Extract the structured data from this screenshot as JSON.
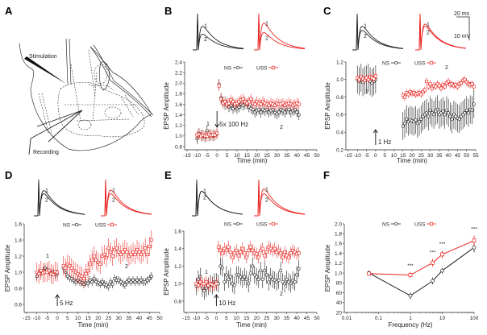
{
  "panel_labels": [
    "A",
    "B",
    "C",
    "D",
    "E",
    "F"
  ],
  "schematic": {
    "stimulation_label": "Stimulation",
    "recording_label": "Recording"
  },
  "colors": {
    "NS": "#222222",
    "USS": "#e8231f"
  },
  "scale_bar": {
    "time": "20 ms",
    "voltage": "10 mV"
  },
  "chart_data": [
    {
      "panel": "B",
      "type": "scatter",
      "xlabel": "Time (min)",
      "ylabel": "EPSP Amplitude",
      "xlim": [
        -15,
        50
      ],
      "ylim": [
        0.8,
        2.4
      ],
      "xticks": [
        "-15",
        "-10",
        "-5",
        "0",
        "5",
        "10",
        "15",
        "20",
        "25",
        "30",
        "35",
        "40",
        "45",
        "50"
      ],
      "yticks": [
        "0.8",
        "1.0",
        "1.2",
        "1.4",
        "1.6",
        "1.8",
        "2.0",
        "2.2",
        "2.4"
      ],
      "legend": [
        "NS",
        "USS"
      ],
      "legend_position": "top-center",
      "stimulus": {
        "label": "5x 100 Hz",
        "time": 0,
        "direction": "down"
      },
      "trace_labels": [
        "1",
        "2"
      ],
      "timepoint_labels": [
        "1",
        "2"
      ],
      "series": [
        {
          "name": "NS",
          "sem": 0.1,
          "baseline": {
            "t0": -10,
            "values": [
              0.95,
              1.05,
              1.02,
              1.0,
              0.98,
              1.1,
              1.0,
              1.02,
              1.0,
              1.02,
              1.04
            ]
          },
          "post": {
            "t0": 1,
            "values": [
              1.98,
              1.72,
              1.65,
              1.6,
              1.62,
              1.55,
              1.58,
              1.52,
              1.55,
              1.52,
              1.55,
              1.6,
              1.58,
              1.6,
              1.6,
              1.55,
              1.52,
              1.5,
              1.45,
              1.48,
              1.5,
              1.45,
              1.5,
              1.48,
              1.5,
              1.45,
              1.48,
              1.5,
              1.44,
              1.42,
              1.45,
              1.5,
              1.48,
              1.45,
              1.5,
              1.5,
              1.45,
              1.48,
              1.5,
              1.45,
              1.4
            ]
          }
        },
        {
          "name": "USS",
          "sem": 0.1,
          "baseline": {
            "t0": -10,
            "values": [
              1.02,
              1.03,
              1.0,
              1.02,
              1.0,
              1.0,
              1.03,
              1.01,
              1.02,
              1.02,
              1.05
            ]
          },
          "post": {
            "t0": 1,
            "values": [
              1.95,
              1.7,
              1.62,
              1.65,
              1.6,
              1.62,
              1.68,
              1.65,
              1.6,
              1.62,
              1.65,
              1.68,
              1.7,
              1.65,
              1.62,
              1.65,
              1.7,
              1.62,
              1.6,
              1.65,
              1.62,
              1.6,
              1.65,
              1.62,
              1.6,
              1.58,
              1.62,
              1.6,
              1.58,
              1.62,
              1.6,
              1.6,
              1.62,
              1.58,
              1.6,
              1.62,
              1.6,
              1.58,
              1.6,
              1.62,
              1.6
            ]
          }
        }
      ]
    },
    {
      "panel": "C",
      "type": "scatter",
      "xlabel": "Time (min)",
      "ylabel": "EPSP Amplitude",
      "xlim": [
        -15,
        55
      ],
      "ylim": [
        0.2,
        1.2
      ],
      "xticks": [
        "-15",
        "-10",
        "-5",
        "0",
        "5",
        "10",
        "15",
        "20",
        "25",
        "30",
        "35",
        "40",
        "45",
        "50",
        "55"
      ],
      "yticks": [
        "0.2",
        "0.4",
        "0.6",
        "0.8",
        "1.0",
        "1.2"
      ],
      "legend": [
        "NS",
        "USS"
      ],
      "legend_position": "top-center",
      "stimulus": {
        "label": "1 Hz",
        "time": 0,
        "direction": "up"
      },
      "trace_labels": [
        "1",
        "2"
      ],
      "timepoint_labels": [
        "1",
        "2"
      ],
      "series": [
        {
          "name": "NS",
          "sem": 0.16,
          "baseline": {
            "t0": -10,
            "values": [
              1.0,
              0.98,
              1.02,
              0.97,
              0.99,
              1.0,
              1.02,
              0.98,
              0.96,
              0.98,
              1.0
            ]
          },
          "post": {
            "t0": 15,
            "values": [
              0.47,
              0.5,
              0.55,
              0.52,
              0.54,
              0.53,
              0.52,
              0.54,
              0.5,
              0.52,
              0.55,
              0.58,
              0.6,
              0.62,
              0.58,
              0.65,
              0.62,
              0.6,
              0.64,
              0.66,
              0.6,
              0.62,
              0.64,
              0.6,
              0.65,
              0.62,
              0.58,
              0.55,
              0.6,
              0.58,
              0.56,
              0.55,
              0.58,
              0.6,
              0.62,
              0.65,
              0.62,
              0.66,
              0.65,
              0.72
            ]
          }
        },
        {
          "name": "USS",
          "sem": 0.04,
          "baseline": {
            "t0": -10,
            "values": [
              1.02,
              1.0,
              1.03,
              1.01,
              0.99,
              1.02,
              1.0,
              1.03,
              1.02,
              1.01,
              1.04
            ]
          },
          "post": {
            "t0": 15,
            "values": [
              0.82,
              0.8,
              0.85,
              0.83,
              0.86,
              0.84,
              0.85,
              0.83,
              0.84,
              0.85,
              0.83,
              0.86,
              0.88,
              0.98,
              0.92,
              0.95,
              0.9,
              0.93,
              0.92,
              0.95,
              0.93,
              0.9,
              0.94,
              0.92,
              0.96,
              0.98,
              0.94,
              0.95,
              0.93,
              0.94,
              0.92,
              0.95,
              0.96,
              0.99,
              1.0,
              0.97,
              0.95,
              0.94,
              0.95,
              0.92
            ]
          }
        }
      ]
    },
    {
      "panel": "D",
      "type": "scatter",
      "xlabel": "Time (min)",
      "ylabel": "EPSP Amplitude",
      "xlim": [
        -15,
        50
      ],
      "ylim": [
        0.6,
        1.6
      ],
      "xticks": [
        "-15",
        "-10",
        "-5",
        "0",
        "5",
        "10",
        "15",
        "20",
        "25",
        "30",
        "35",
        "40",
        "45",
        "50"
      ],
      "yticks": [
        "0.6",
        "0.8",
        "1.0",
        "1.2",
        "1.4",
        "1.6"
      ],
      "legend": [
        "NS",
        "USS"
      ],
      "legend_position": "top-center",
      "stimulus": {
        "label": "5 Hz",
        "time": 0,
        "direction": "up"
      },
      "trace_labels": [
        "1",
        "2"
      ],
      "timepoint_labels": [
        "1",
        "2"
      ],
      "series": [
        {
          "name": "NS",
          "sem": 0.05,
          "baseline": {
            "t0": -10,
            "values": [
              0.95,
              1.0,
              0.98,
              1.02,
              1.05,
              1.03,
              1.0,
              0.98,
              1.0,
              0.97,
              0.98
            ]
          },
          "post": {
            "t0": 3,
            "values": [
              1.05,
              1.0,
              0.95,
              0.93,
              0.92,
              0.9,
              0.88,
              0.9,
              0.88,
              0.87,
              0.85,
              0.87,
              0.86,
              0.9,
              0.88,
              0.92,
              0.88,
              0.87,
              0.85,
              0.88,
              0.85,
              0.84,
              0.82,
              0.88,
              0.85,
              0.92,
              0.9,
              0.9,
              0.88,
              0.86,
              0.84,
              0.88,
              0.9,
              0.88,
              0.9,
              0.88,
              0.9,
              0.88,
              0.9,
              0.88,
              0.88,
              0.9,
              0.92,
              0.95
            ]
          }
        },
        {
          "name": "USS",
          "sem": 0.12,
          "baseline": {
            "t0": -10,
            "values": [
              1.0,
              0.98,
              1.02,
              0.99,
              1.0,
              1.0,
              1.02,
              0.98,
              0.97,
              1.01,
              1.0
            ]
          },
          "post": {
            "t0": 3,
            "values": [
              1.08,
              1.05,
              1.1,
              1.08,
              1.05,
              1.02,
              1.0,
              0.98,
              0.96,
              0.95,
              0.92,
              0.98,
              1.02,
              1.1,
              1.15,
              1.2,
              1.15,
              1.12,
              1.1,
              1.2,
              1.22,
              1.18,
              1.3,
              1.25,
              1.2,
              1.28,
              1.3,
              1.25,
              1.22,
              1.25,
              1.28,
              1.25,
              1.2,
              1.22,
              1.25,
              1.22,
              1.28,
              1.25,
              1.22,
              1.25,
              1.3,
              1.22,
              1.32,
              1.4
            ]
          }
        }
      ]
    },
    {
      "panel": "E",
      "type": "scatter",
      "xlabel": "Time (min)",
      "ylabel": "EPSP Amplitude",
      "xlim": [
        -15,
        50
      ],
      "ylim": [
        0.8,
        1.6
      ],
      "xticks": [
        "-15",
        "-10",
        "-5",
        "0",
        "5",
        "10",
        "15",
        "20",
        "25",
        "30",
        "35",
        "40",
        "45",
        "50"
      ],
      "yticks": [
        "0.8",
        "1.0",
        "1.2",
        "1.4",
        "1.6"
      ],
      "legend": [
        "NS",
        "USS"
      ],
      "legend_position": "top-center",
      "stimulus": {
        "label": "10 Hz",
        "time": 0,
        "direction": "up"
      },
      "trace_labels": [
        "1",
        "2"
      ],
      "timepoint_labels": [
        "1",
        "2"
      ],
      "series": [
        {
          "name": "NS",
          "sem": 0.1,
          "baseline": {
            "t0": -10,
            "values": [
              0.97,
              1.05,
              1.08,
              0.95,
              0.92,
              0.95,
              0.97,
              1.0,
              0.98,
              1.02,
              1.02
            ]
          },
          "post": {
            "t0": 1,
            "values": [
              1.0,
              1.2,
              1.18,
              1.02,
              1.1,
              1.05,
              1.08,
              1.0,
              0.98,
              1.1,
              1.1,
              1.08,
              1.05,
              1.08,
              1.05,
              1.0,
              1.12,
              1.2,
              1.1,
              1.08,
              1.05,
              1.15,
              1.05,
              1.15,
              1.1,
              1.02,
              1.08,
              1.05,
              1.04,
              1.02,
              1.04,
              1.15,
              1.02,
              1.0,
              1.05,
              1.02,
              1.0,
              1.04,
              1.02,
              1.1,
              1.17
            ]
          }
        },
        {
          "name": "USS",
          "sem": 0.07,
          "baseline": {
            "t0": -10,
            "values": [
              1.0,
              0.98,
              1.02,
              1.0,
              1.0,
              1.02,
              0.98,
              1.0,
              0.99,
              0.98,
              1.0
            ]
          },
          "post": {
            "t0": 1,
            "values": [
              1.42,
              1.38,
              1.35,
              1.4,
              1.38,
              1.42,
              1.36,
              1.3,
              1.35,
              1.38,
              1.32,
              1.36,
              1.4,
              1.35,
              1.3,
              1.38,
              1.42,
              1.38,
              1.35,
              1.34,
              1.3,
              1.38,
              1.4,
              1.32,
              1.36,
              1.42,
              1.4,
              1.38,
              1.4,
              1.36,
              1.38,
              1.35,
              1.3,
              1.36,
              1.32,
              1.3,
              1.35,
              1.38,
              1.36,
              1.34,
              1.35
            ]
          }
        }
      ]
    },
    {
      "panel": "F",
      "type": "line",
      "xlabel": "Frequency (Hz)",
      "ylabel": "EPSP Amplitude",
      "xscale": "log",
      "xlim": [
        0.01,
        100
      ],
      "ylim": [
        0.2,
        2.0
      ],
      "xticks": [
        "0.01",
        "0.1",
        "1",
        "10",
        "100"
      ],
      "yticks": [
        "20",
        "40",
        "60",
        "80",
        "1.0",
        "1.2",
        "1.4",
        "1.6",
        "1.8",
        "2.0"
      ],
      "legend": [
        "NS",
        "USS"
      ],
      "legend_position": "top-center",
      "x": [
        0.05,
        1,
        5,
        10,
        100
      ],
      "series": [
        {
          "name": "NS",
          "values": [
            1.0,
            0.54,
            0.84,
            1.05,
            1.52
          ],
          "err": [
            0.05,
            0.07,
            0.07,
            0.06,
            0.1
          ]
        },
        {
          "name": "USS",
          "values": [
            0.99,
            0.96,
            1.21,
            1.38,
            1.66
          ],
          "err": [
            0.04,
            0.06,
            0.08,
            0.08,
            0.1
          ]
        }
      ],
      "significance": [
        {
          "x": 1,
          "label": "***"
        },
        {
          "x": 5,
          "label": "***"
        },
        {
          "x": 10,
          "label": "***"
        },
        {
          "x": 100,
          "label": "***"
        }
      ]
    }
  ]
}
